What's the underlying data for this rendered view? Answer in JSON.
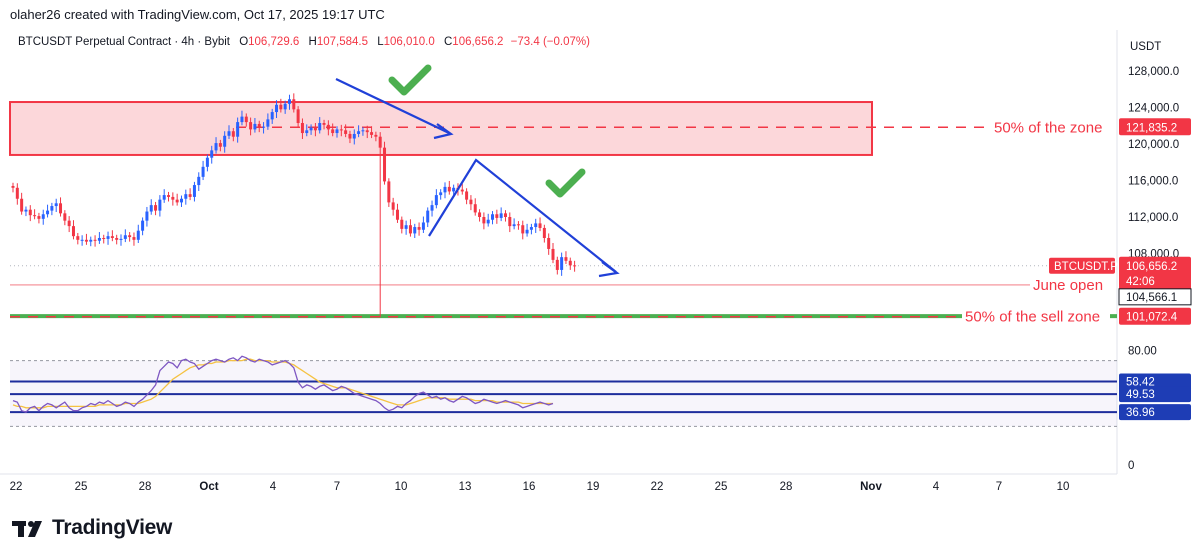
{
  "header": {
    "attribution": "olaher26 created with TradingView.com, Oct 17, 2025 19:17 UTC"
  },
  "legend": {
    "symbol": "BTCUSDT Perpetual Contract · 4h · Bybit",
    "o_label": "O",
    "o_value": "106,729.6",
    "h_label": "H",
    "h_value": "107,584.5",
    "l_label": "L",
    "l_value": "106,010.0",
    "c_label": "C",
    "c_value": "106,656.2",
    "change": "−73.4 (−0.07%)"
  },
  "logo": {
    "word": "TradingView"
  },
  "chart_data": {
    "type": "candlestick",
    "currency": "USDT",
    "y_ticks": [
      "128,000.0",
      "124,000.0",
      "120,000.0",
      "116,000.0",
      "112,000.0",
      "108,000.0"
    ],
    "ylim": [
      99900,
      130500
    ],
    "x_ticks": [
      "22",
      "25",
      "28",
      "Oct",
      "4",
      "7",
      "10",
      "13",
      "16",
      "19",
      "22",
      "25",
      "28",
      "Nov",
      "4",
      "7",
      "10"
    ],
    "price_tags": [
      {
        "name": "BTCUSDT.P",
        "value": "106,656.2",
        "countdown": "42:06",
        "color": "#f23645"
      },
      {
        "value": "104,566.1",
        "color": "#ffffff"
      },
      {
        "value": "121,835.2",
        "color": "#f23645"
      },
      {
        "value": "101,072.4",
        "color": "#f23645"
      }
    ],
    "annotations": [
      {
        "text": "50% of the zone",
        "price": 121835.2
      },
      {
        "text": "June open",
        "price": 104566.1
      },
      {
        "text": "50% of the sell zone",
        "price": 101072.4
      }
    ],
    "zone": {
      "from_price": 118800,
      "to_price": 124600,
      "color": "#f23645"
    },
    "support_price": 101800,
    "candle_closes": [
      115200,
      114000,
      112600,
      112800,
      112200,
      112100,
      111800,
      112300,
      112700,
      113200,
      113500,
      112400,
      111600,
      111000,
      109900,
      109500,
      109500,
      109300,
      109500,
      109400,
      109700,
      109600,
      109900,
      109700,
      109500,
      109600,
      110000,
      109800,
      109500,
      110500,
      111600,
      112600,
      113300,
      112700,
      113900,
      114400,
      114200,
      113900,
      113600,
      114000,
      114500,
      114200,
      115500,
      116400,
      117500,
      118500,
      119300,
      120100,
      119700,
      120900,
      121400,
      120800,
      122400,
      123000,
      122400,
      121600,
      122200,
      121800,
      121900,
      122700,
      123500,
      124300,
      123800,
      124400,
      124900,
      123800,
      122300,
      121200,
      121500,
      121800,
      121500,
      122300,
      122100,
      121600,
      121200,
      121600,
      121500,
      121100,
      120600,
      121100,
      121400,
      121500,
      121300,
      121000,
      120800,
      119600,
      115900,
      113600,
      112800,
      111700,
      110700,
      111100,
      110200,
      110900,
      110600,
      111400,
      112700,
      113300,
      114400,
      114700,
      115300,
      114800,
      115200,
      115000,
      114800,
      113900,
      113400,
      112500,
      112000,
      111300,
      111700,
      112300,
      111900,
      112400,
      112000,
      111000,
      111200,
      111100,
      110200,
      110600,
      110900,
      111300,
      110800,
      109700,
      108500,
      107300,
      106200,
      107600,
      107200,
      106700,
      106656
    ],
    "indicator": {
      "y_ticks": [
        "80.00",
        "0"
      ],
      "levels": [
        "58.42",
        "49.53",
        "36.96"
      ],
      "level_values": [
        58.42,
        49.53,
        36.96
      ],
      "range": [
        0,
        100
      ],
      "series_values": [
        45,
        44,
        38,
        37,
        40,
        41,
        38,
        41,
        43,
        42,
        40,
        42,
        44,
        40,
        38,
        38,
        40,
        41,
        43,
        42,
        44,
        43,
        45,
        43,
        41,
        42,
        44,
        43,
        41,
        44,
        46,
        49,
        52,
        56,
        66,
        69,
        72,
        71,
        68,
        73,
        74,
        72,
        71,
        67,
        69,
        71,
        73,
        74,
        73,
        72,
        74,
        75,
        73,
        76,
        75,
        73,
        72,
        74,
        73,
        72,
        70,
        71,
        72,
        73,
        71,
        68,
        58,
        54,
        56,
        55,
        53,
        55,
        56,
        54,
        52,
        53,
        55,
        54,
        52,
        50,
        49,
        48,
        47,
        46,
        45,
        43,
        40,
        38,
        39,
        41,
        40,
        43,
        45,
        48,
        50,
        51,
        49,
        47,
        48,
        46,
        47,
        45,
        44,
        46,
        48,
        47,
        45,
        43,
        44,
        46,
        45,
        44,
        43,
        44,
        45,
        44,
        43,
        42,
        40,
        41,
        42,
        43,
        44,
        43,
        42,
        43
      ],
      "signal_values": [
        42,
        41,
        41,
        40,
        40,
        40,
        40,
        40,
        41,
        41,
        41,
        41,
        41,
        41,
        41,
        41,
        41,
        41,
        41,
        41,
        42,
        42,
        42,
        42,
        42,
        42,
        43,
        43,
        43,
        43,
        44,
        45,
        46,
        48,
        51,
        54,
        57,
        60,
        62,
        64,
        66,
        68,
        69,
        70,
        70,
        71,
        71,
        72,
        72,
        72,
        73,
        73,
        73,
        73,
        74,
        74,
        73,
        73,
        73,
        73,
        72,
        72,
        72,
        72,
        71,
        70,
        68,
        66,
        64,
        62,
        60,
        58,
        57,
        56,
        55,
        54,
        54,
        54,
        53,
        52,
        51,
        50,
        49,
        48,
        47,
        46,
        45,
        44,
        43,
        42,
        42,
        42,
        43,
        44,
        45,
        46,
        47,
        47,
        47,
        47,
        47,
        46,
        46,
        46,
        46,
        46,
        46,
        45,
        45,
        45,
        45,
        45,
        44,
        44,
        44,
        44,
        44,
        44,
        43,
        43,
        43,
        43,
        43,
        43,
        43,
        43
      ]
    }
  }
}
